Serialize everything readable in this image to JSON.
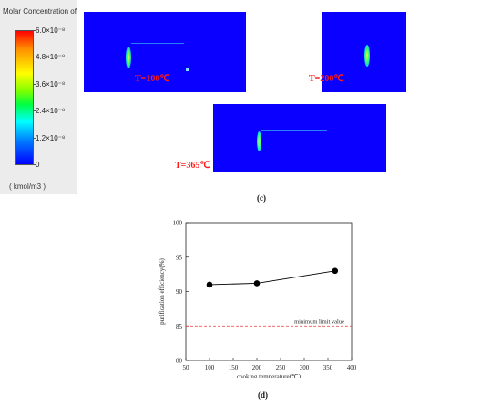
{
  "legend": {
    "title": "Molar Concentration of",
    "ticks": [
      "6.0×10⁻⁸",
      "4.8×10⁻⁸",
      "3.6×10⁻⁸",
      "2.4×10⁻⁸",
      "1.2×10⁻⁸",
      "0"
    ],
    "unit": "( kmol/m3 )"
  },
  "panels": {
    "t100": "T=100℃",
    "t200": "T=200℃",
    "t365": "T=365℃"
  },
  "captions": {
    "c": "(c)",
    "d": "(d)"
  },
  "colors": {
    "panel_background": "#0a00ff",
    "limit_line": "#e53935",
    "temperature_label": "#ff1a1a"
  },
  "chart_data": {
    "type": "line",
    "xlabel": "cooking temperature(℃)",
    "ylabel": "purification efficiency(%)",
    "xlim": [
      50,
      400
    ],
    "ylim": [
      80,
      100
    ],
    "xticks": [
      50,
      100,
      150,
      200,
      250,
      300,
      350,
      400
    ],
    "yticks": [
      80,
      85,
      90,
      95,
      100
    ],
    "x": [
      100,
      200,
      365
    ],
    "series": [
      {
        "values": [
          91.0,
          91.2,
          93.0
        ],
        "marker": "circle",
        "color": "#000000"
      }
    ],
    "reference_line": {
      "y": 85,
      "label": "minimum limit value",
      "style": "dashed",
      "color": "#e53935"
    },
    "grid": false
  }
}
